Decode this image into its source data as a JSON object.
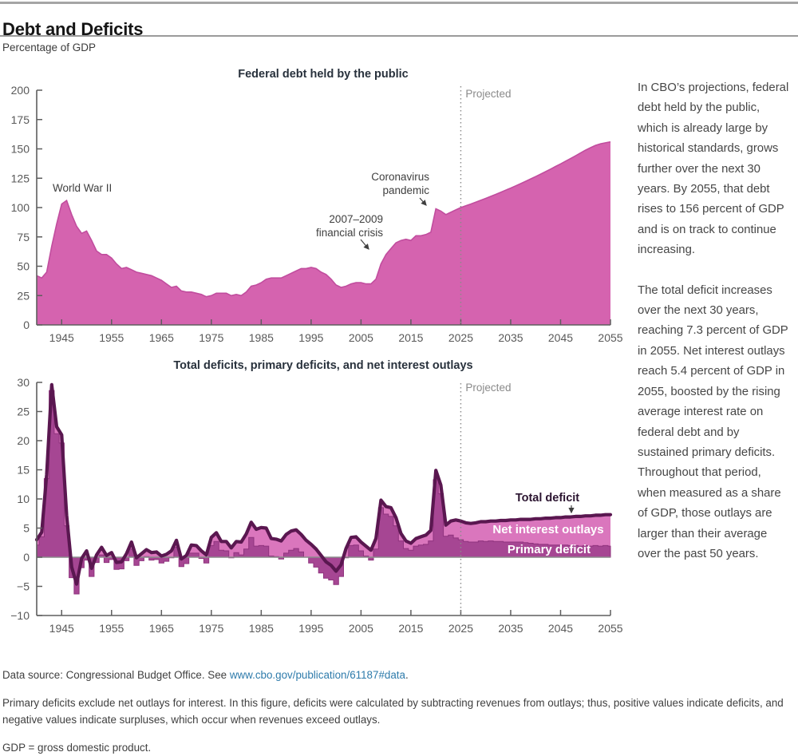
{
  "header": {
    "title": "Debt and Deficits",
    "subtitle": "Percentage of GDP"
  },
  "commentary": {
    "para1": "In CBO’s projections, federal debt held by the public, which is already large by historical standards, grows further over the next 30 years. By 2055, that debt rises to 156 percent of GDP and is on track to continue increasing.",
    "para2": "The total deficit increases over the next 30 years, reaching 7.3 percent of GDP in 2055. Net interest outlays reach 5.4 percent of GDP in 2055, boosted by the rising average interest rate on federal debt and by sustained primary deficits. Throughout that period, when measured as a share of GDP, those outlays are larger than their average over the past 50 years."
  },
  "footer": {
    "source_prefix": "Data source: Congressional Budget Office. See ",
    "source_link": "www.cbo.gov/publication/61187#data",
    "source_suffix": ".",
    "note": "Primary deficits exclude net outlays for interest. In this figure, deficits were calculated by subtracting revenues from outlays; thus, positive values indicate deficits, and negative values indicate surpluses, which occur when revenues exceed outlays.",
    "gdp_note": "GDP = gross domestic product."
  },
  "colors": {
    "debt_area": "#d563af",
    "debt_area_edge": "#c14d9e",
    "net_interest_area": "#da76bd",
    "primary_bars": "#a64693",
    "primary_bars_edge": "#8f337e",
    "total_line": "#5a1750",
    "axis": "#5e5e5e",
    "tick_label": "#595959",
    "zero_line": "#8c8c8c",
    "projected": "#8a8a8a",
    "annotation_text": "#3f3f3f",
    "chart_title": "#28313c",
    "white_label": "#ffffff",
    "total_label": "#2b1430",
    "link": "#2e7bab"
  },
  "chart_data": [
    {
      "type": "area",
      "title": "Federal debt held by the public",
      "ylabel": "Percentage of GDP",
      "ylim": [
        0,
        200
      ],
      "ytick_step": 25,
      "x_start_year": 1940,
      "x_end_year": 2055,
      "xticks": [
        1945,
        1955,
        1965,
        1975,
        1985,
        1995,
        2005,
        2015,
        2025,
        2035,
        2045,
        2055
      ],
      "projected_year": 2025,
      "projected_label": "Projected",
      "grid": false,
      "annotations": {
        "wwii": "World War II",
        "financial_crisis": [
          "2007–2009",
          "financial crisis"
        ],
        "covid": [
          "Coronavirus",
          "pandemic"
        ]
      },
      "series": [
        {
          "name": "Federal debt held by the public",
          "values": [
            42,
            40,
            45,
            67,
            86,
            103,
            106,
            94,
            84,
            78,
            80,
            72,
            63,
            60,
            60,
            57,
            52,
            48,
            49,
            47,
            45,
            44,
            43,
            42,
            40,
            38,
            35,
            32,
            33,
            29,
            28,
            28,
            27,
            26,
            24,
            25,
            27,
            27,
            27,
            25,
            26,
            25,
            28,
            33,
            34,
            36,
            39,
            40,
            40,
            40,
            42,
            44,
            46,
            48,
            48,
            49,
            48,
            45,
            43,
            39,
            34,
            32,
            33,
            35,
            36,
            36,
            35,
            35,
            39,
            52,
            60,
            65,
            70,
            72,
            73,
            72,
            76,
            76,
            77,
            79,
            99,
            97,
            94,
            96,
            98,
            100,
            101.5,
            103,
            104.6,
            106.2,
            107.8,
            109.5,
            111.2,
            113,
            114.8,
            116.6,
            118.5,
            120.4,
            122.4,
            124.4,
            126.4,
            128.5,
            130.6,
            132.8,
            135,
            137.2,
            139.5,
            141.8,
            144.1,
            146.5,
            148.9,
            151,
            153,
            154.3,
            155.2,
            156
          ]
        }
      ]
    },
    {
      "type": "line+area+bar",
      "title": "Total deficits, primary deficits, and net interest outlays",
      "ylabel": "Percentage of GDP",
      "ylim": [
        -10,
        30
      ],
      "ytick_step": 5,
      "x_start_year": 1940,
      "x_end_year": 2055,
      "xticks": [
        1945,
        1955,
        1965,
        1975,
        1985,
        1995,
        2005,
        2015,
        2025,
        2035,
        2045,
        2055
      ],
      "projected_year": 2025,
      "projected_label": "Projected",
      "grid": false,
      "series_labels": {
        "total": "Total deficit",
        "interest": "Net interest outlays",
        "primary": "Primary deficit"
      },
      "series": [
        {
          "name": "Total deficit",
          "values": [
            3.0,
            4.3,
            14.2,
            29.6,
            22.4,
            21.0,
            7.2,
            -1.7,
            -4.6,
            -0.2,
            1.1,
            -1.9,
            0.4,
            1.7,
            0.3,
            0.8,
            -0.9,
            -0.8,
            0.6,
            2.6,
            -0.1,
            0.6,
            1.3,
            0.8,
            0.9,
            0.2,
            0.5,
            1.1,
            2.9,
            -0.3,
            0.3,
            2.1,
            2.0,
            1.1,
            0.4,
            3.4,
            4.2,
            2.7,
            2.7,
            1.6,
            2.7,
            2.6,
            4.0,
            6.0,
            4.8,
            5.1,
            5.0,
            3.2,
            3.1,
            2.8,
            3.9,
            4.5,
            4.7,
            3.9,
            2.9,
            2.2,
            1.4,
            0.3,
            -0.8,
            -1.4,
            -2.4,
            -1.3,
            1.5,
            3.4,
            3.5,
            2.6,
            1.9,
            1.2,
            3.2,
            9.8,
            8.7,
            8.5,
            6.8,
            4.1,
            2.8,
            2.4,
            3.2,
            3.5,
            3.8,
            4.6,
            14.9,
            12.4,
            5.5,
            6.2,
            6.4,
            6.2,
            5.9,
            5.8,
            5.9,
            6.1,
            6.1,
            6.2,
            6.2,
            6.3,
            6.3,
            6.4,
            6.4,
            6.5,
            6.5,
            6.5,
            6.6,
            6.6,
            6.7,
            6.7,
            6.8,
            6.8,
            6.9,
            6.9,
            7.0,
            7.0,
            7.1,
            7.1,
            7.2,
            7.2,
            7.3,
            7.3
          ]
        },
        {
          "name": "Net interest outlays",
          "values": [
            0.9,
            0.8,
            0.7,
            1.0,
            1.2,
            1.4,
            1.8,
            1.8,
            1.7,
            1.6,
            1.6,
            1.4,
            1.3,
            1.3,
            1.2,
            1.2,
            1.2,
            1.2,
            1.2,
            1.2,
            1.3,
            1.2,
            1.2,
            1.3,
            1.3,
            1.2,
            1.2,
            1.2,
            1.2,
            1.3,
            1.4,
            1.4,
            1.3,
            1.3,
            1.4,
            1.4,
            1.5,
            1.5,
            1.6,
            1.7,
            1.9,
            2.2,
            2.6,
            2.6,
            2.9,
            3.1,
            3.1,
            3.0,
            3.0,
            3.1,
            3.2,
            3.3,
            3.2,
            3.0,
            2.9,
            3.2,
            3.1,
            3.0,
            2.8,
            2.5,
            2.3,
            2.0,
            1.6,
            1.4,
            1.4,
            1.5,
            1.7,
            1.7,
            1.8,
            1.3,
            1.3,
            1.5,
            1.4,
            1.3,
            1.3,
            1.2,
            1.3,
            1.4,
            1.6,
            1.8,
            1.6,
            1.5,
            1.9,
            2.4,
            3.1,
            3.2,
            3.2,
            3.2,
            3.3,
            3.3,
            3.4,
            3.4,
            3.5,
            3.6,
            3.7,
            3.8,
            3.8,
            3.9,
            4.0,
            4.1,
            4.3,
            4.4,
            4.5,
            4.6,
            4.7,
            4.7,
            4.8,
            4.9,
            5.0,
            5.1,
            5.1,
            5.2,
            5.2,
            5.3,
            5.3,
            5.4
          ]
        },
        {
          "name": "Primary deficit (total deficit minus net interest outlays)",
          "values": "derived: total minus interest"
        }
      ]
    }
  ]
}
